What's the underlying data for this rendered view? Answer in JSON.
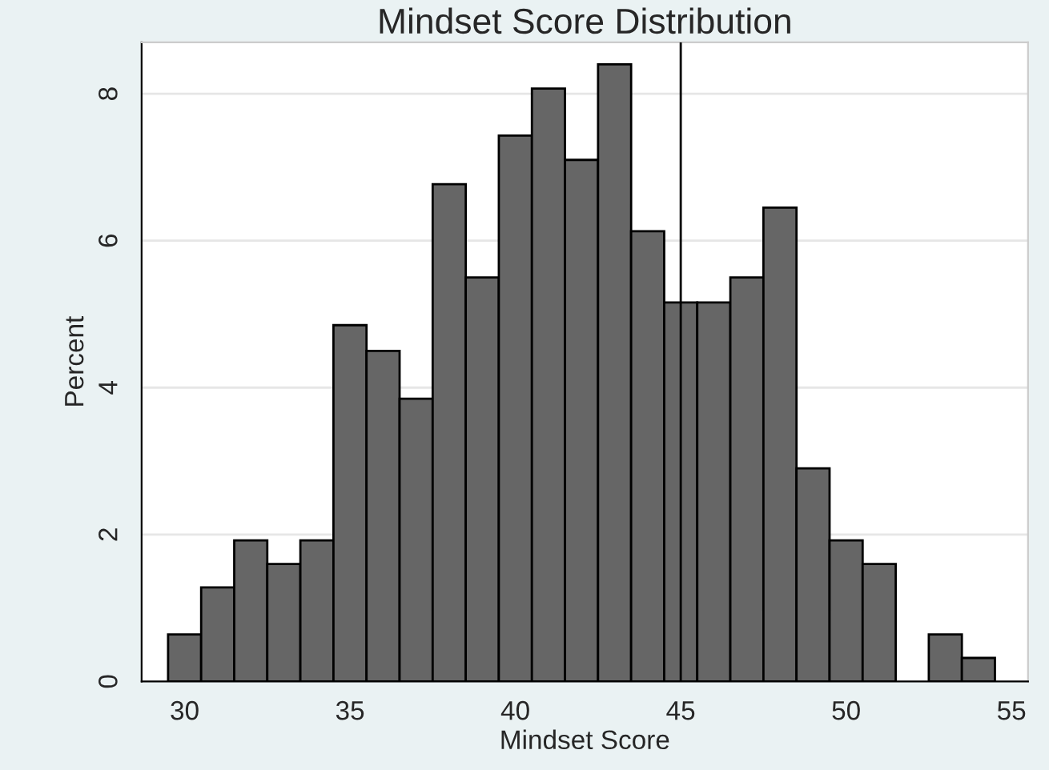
{
  "chart_data": {
    "type": "histogram",
    "title": "Mindset Score Distribution",
    "xlabel": "Mindset Score",
    "ylabel": "Percent",
    "bins": [
      29.5,
      30.5,
      31.5,
      32.5,
      33.5,
      34.5,
      35.5,
      36.5,
      37.5,
      38.5,
      39.5,
      40.5,
      41.5,
      42.5,
      43.5,
      44.5,
      45.5,
      46.5,
      47.5,
      48.5,
      49.5,
      50.5,
      51.5,
      52.5,
      53.5,
      54.5
    ],
    "values": [
      0.64,
      1.28,
      1.92,
      1.6,
      1.92,
      4.85,
      4.5,
      3.85,
      6.77,
      5.5,
      7.43,
      8.07,
      7.1,
      8.4,
      6.13,
      5.16,
      5.16,
      5.5,
      6.45,
      2.9,
      1.92,
      1.6,
      0,
      0.64,
      0.32
    ],
    "color": "#666666",
    "xlim": [
      28.7,
      55.5
    ],
    "xticks": [
      30,
      35,
      40,
      45,
      50,
      55
    ],
    "ylim": [
      0,
      8.7
    ],
    "yticks": [
      0,
      2,
      4,
      6,
      8
    ],
    "grid": "y",
    "ref_lines": [
      {
        "axis": "x",
        "value": 45,
        "color": "#000000"
      }
    ]
  }
}
